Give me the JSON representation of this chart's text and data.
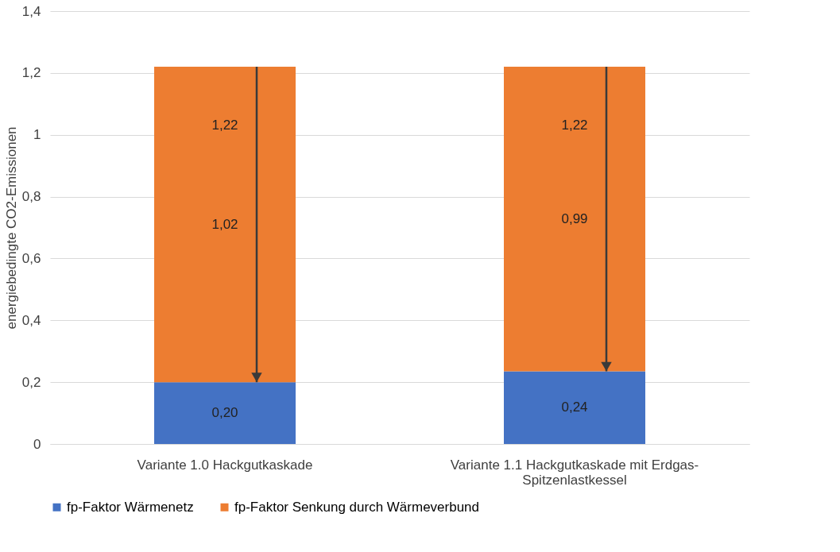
{
  "chart_data": {
    "type": "bar",
    "stacked": true,
    "ylabel": "energiebedingte CO2-Emissionen",
    "categories": [
      "Variante 1.0 Hackgutkaskade",
      "Variante 1.1 Hackgutkaskade mit Erdgas-Spitzenlastkessel"
    ],
    "series": [
      {
        "name": "fp-Faktor Wärmenetz",
        "color": "#4472c4",
        "values": [
          0.2,
          0.235
        ],
        "value_labels": [
          "0,20",
          "0,24"
        ]
      },
      {
        "name": "fp-Faktor Senkung durch Wärmeverbund",
        "color": "#ed7d31",
        "values": [
          1.02,
          0.985
        ],
        "value_labels": [
          "1,02",
          "0,99"
        ]
      }
    ],
    "totals": [
      "1,22",
      "1,22"
    ],
    "ylim": [
      0,
      1.4
    ],
    "yticks": [
      {
        "value": 0,
        "label": "0"
      },
      {
        "value": 0.2,
        "label": "0,2"
      },
      {
        "value": 0.4,
        "label": "0,4"
      },
      {
        "value": 0.6,
        "label": "0,6"
      },
      {
        "value": 0.8,
        "label": "0,8"
      },
      {
        "value": 1,
        "label": "1"
      },
      {
        "value": 1.2,
        "label": "1,2"
      },
      {
        "value": 1.4,
        "label": "1,4"
      }
    ],
    "grid": "y",
    "legend": "bottom"
  }
}
